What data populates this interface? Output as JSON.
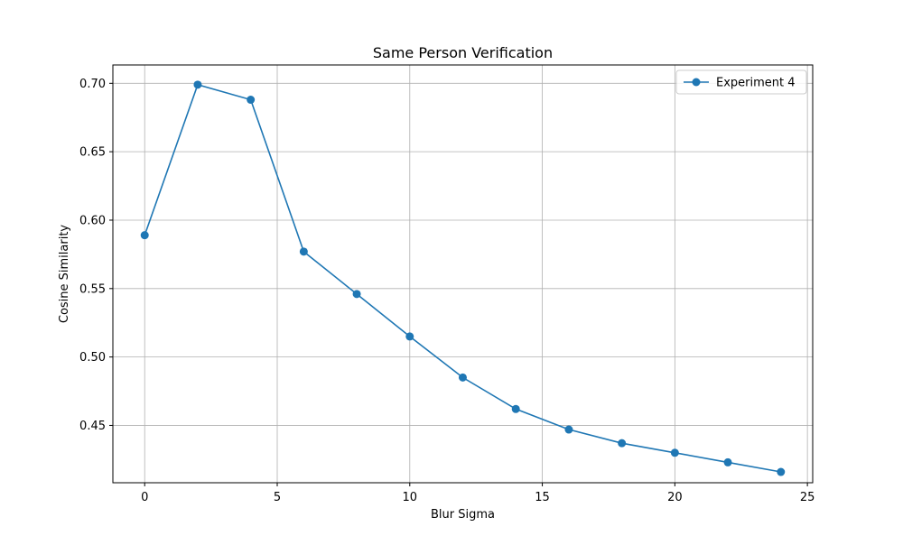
{
  "chart_data": {
    "type": "line",
    "title": "Same Person Verification",
    "xlabel": "Blur Sigma",
    "ylabel": "Cosine Similarity",
    "xlim": [
      -1.2,
      25.2
    ],
    "ylim": [
      0.4081,
      0.7134
    ],
    "x_ticks": [
      0,
      5,
      10,
      15,
      20,
      25
    ],
    "x_tick_labels": [
      "0",
      "5",
      "10",
      "15",
      "20",
      "25"
    ],
    "y_ticks": [
      0.45,
      0.5,
      0.55,
      0.6,
      0.65,
      0.7
    ],
    "y_tick_labels": [
      "0.45",
      "0.50",
      "0.55",
      "0.60",
      "0.65",
      "0.70"
    ],
    "grid": true,
    "legend_position": "top-right",
    "series": [
      {
        "name": "Experiment 4",
        "color": "#1f77b4",
        "marker": "circle",
        "x": [
          0,
          2,
          4,
          6,
          8,
          10,
          12,
          14,
          16,
          18,
          20,
          22,
          24
        ],
        "y": [
          0.589,
          0.699,
          0.688,
          0.577,
          0.546,
          0.515,
          0.485,
          0.462,
          0.447,
          0.437,
          0.43,
          0.423,
          0.416
        ]
      }
    ]
  }
}
